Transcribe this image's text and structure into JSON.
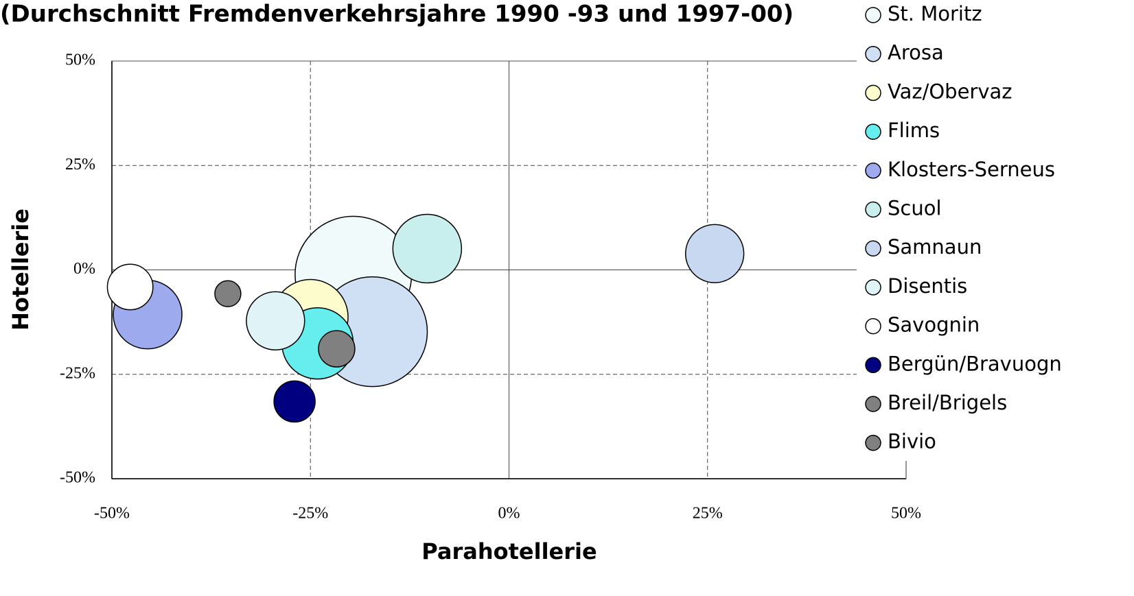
{
  "chart_data": {
    "type": "bubble",
    "title": "(Durchschnitt Fremdenverkehrsjahre 1990 -93 und 1997-00)",
    "xlabel": "Parahotellerie",
    "ylabel": "Hotellerie",
    "xlim": [
      -50,
      50
    ],
    "ylim": [
      -50,
      50
    ],
    "xticks": [
      {
        "value": -50,
        "label": "-50%"
      },
      {
        "value": -25,
        "label": "-25%"
      },
      {
        "value": 0,
        "label": "0%"
      },
      {
        "value": 25,
        "label": "25%"
      },
      {
        "value": 50,
        "label": "50%"
      }
    ],
    "yticks": [
      {
        "value": -50,
        "label": "-50%"
      },
      {
        "value": -25,
        "label": "-25%"
      },
      {
        "value": 0,
        "label": "0%"
      },
      {
        "value": 25,
        "label": "25%"
      },
      {
        "value": 50,
        "label": "50%"
      }
    ],
    "grid": true,
    "legend": "right",
    "series": [
      {
        "name": "St. Moritz",
        "color": "#f0fafa",
        "x": [
          -19.6
        ],
        "values": [
          -1.1
        ],
        "sizes": [
          72
        ]
      },
      {
        "name": "Arosa",
        "color": "#cfe0f5",
        "x": [
          -17.2
        ],
        "values": [
          -14.8
        ],
        "sizes": [
          64
        ]
      },
      {
        "name": "Vaz/Obervaz",
        "color": "#fdfccc",
        "x": [
          -25
        ],
        "values": [
          -11.3
        ],
        "sizes": [
          30
        ]
      },
      {
        "name": "Flims",
        "color": "#66eeee",
        "x": [
          -24.1
        ],
        "values": [
          -17.6
        ],
        "sizes": [
          27
        ]
      },
      {
        "name": "Klosters-Serneus",
        "color": "#9eaaee",
        "x": [
          -45.5
        ],
        "values": [
          -10.7
        ],
        "sizes": [
          25
        ]
      },
      {
        "name": "Scuol",
        "color": "#c8eeee",
        "x": [
          -10.3
        ],
        "values": [
          5.1
        ],
        "sizes": [
          25
        ]
      },
      {
        "name": "Samnaun",
        "color": "#c8d8f0",
        "x": [
          25.9
        ],
        "values": [
          3.9
        ],
        "sizes": [
          18
        ]
      },
      {
        "name": "Disentis",
        "color": "#e0f4f8",
        "x": [
          -29.4
        ],
        "values": [
          -12.2
        ],
        "sizes": [
          18
        ]
      },
      {
        "name": "Savognin",
        "color": "#ffffff",
        "x": [
          -47.7
        ],
        "values": [
          -4.1
        ],
        "sizes": [
          11
        ]
      },
      {
        "name": "Bergün/Bravuogn",
        "color": "#000080",
        "x": [
          -27
        ],
        "values": [
          -31.5
        ],
        "sizes": [
          9
        ]
      },
      {
        "name": "Breil/Brigels",
        "color": "#808080",
        "x": [
          -21.7
        ],
        "values": [
          -18.9
        ],
        "sizes": [
          7
        ]
      },
      {
        "name": "Bivio",
        "color": "#808080",
        "x": [
          -35.4
        ],
        "values": [
          -5.7
        ],
        "sizes": [
          3.6
        ]
      }
    ]
  }
}
